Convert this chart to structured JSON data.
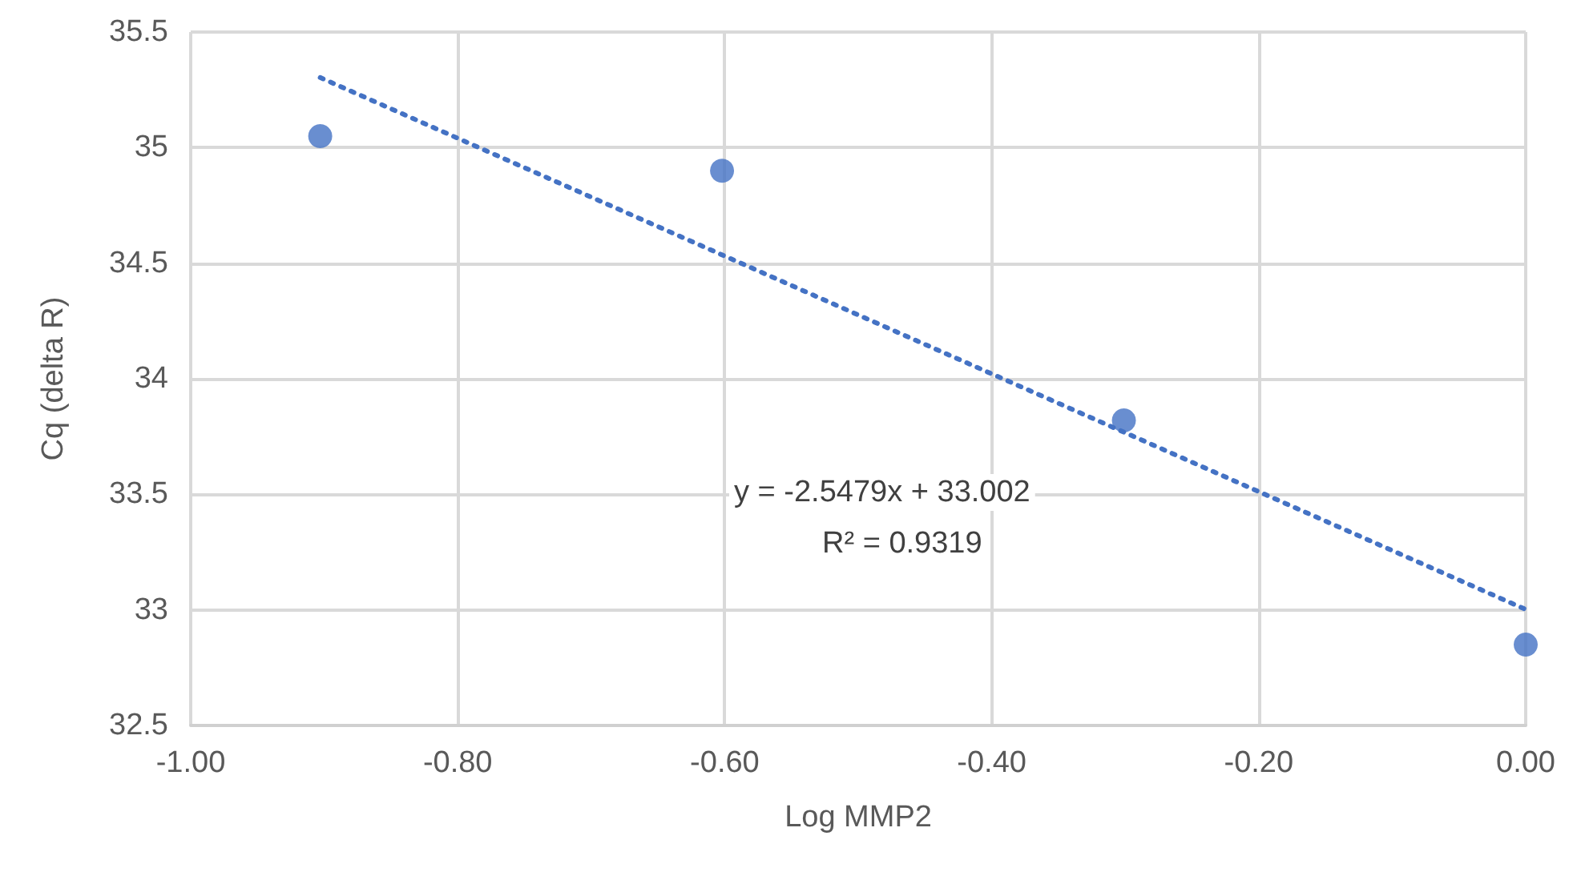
{
  "chart_data": {
    "type": "scatter",
    "xlabel": "Log MMP2",
    "ylabel": "Cq (delta R)",
    "xlim": [
      -1,
      0
    ],
    "xticks": [
      {
        "value": -1,
        "label": "-1.00"
      },
      {
        "value": -0.8,
        "label": "-0.80"
      },
      {
        "value": -0.6,
        "label": "-0.60"
      },
      {
        "value": -0.4,
        "label": "-0.40"
      },
      {
        "value": -0.2,
        "label": "-0.20"
      },
      {
        "value": 0,
        "label": "0.00"
      }
    ],
    "ylim": [
      32.5,
      35.5
    ],
    "yticks": [
      32.5,
      33,
      33.5,
      34,
      34.5,
      35,
      35.5
    ],
    "grid": true,
    "marker": "circle",
    "series": [
      {
        "color": "#4472c4",
        "x": [
          -0.903,
          -0.602,
          -0.301,
          0
        ],
        "values": [
          35.05,
          34.9,
          33.82,
          32.85
        ]
      },
      {
        "type": "line",
        "color": "#4472c4",
        "line_style": "dotted",
        "marker": "none",
        "x": [
          -0.903,
          0
        ],
        "values": [
          35.303,
          33.002
        ]
      }
    ],
    "annotations": [
      "y = -2.5479x + 33.002",
      "R² = 0.9319"
    ]
  }
}
